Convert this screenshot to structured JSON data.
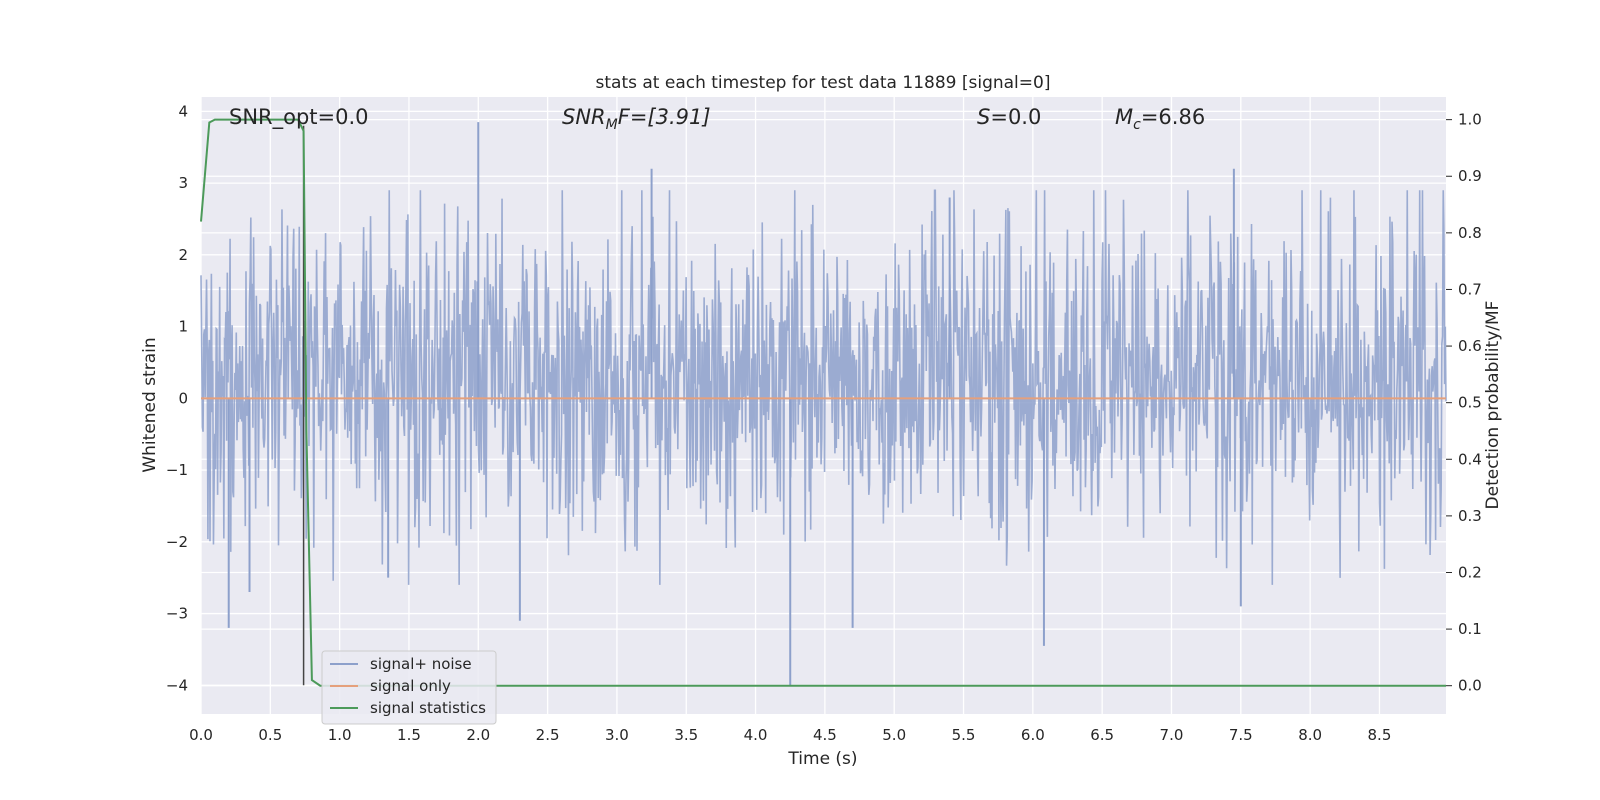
{
  "chart_data": {
    "type": "line",
    "title": "stats at each timestep for test data 11889 [signal=0]",
    "xlabel": "Time (s)",
    "ylabel": "Whitened strain",
    "y2label": "Detection probability/MF",
    "xlim": [
      0.0,
      8.98
    ],
    "ylim": [
      -4.4,
      4.2
    ],
    "y2lim": [
      -0.05,
      1.04
    ],
    "xticks": [
      "0.0",
      "0.5",
      "1.0",
      "1.5",
      "2.0",
      "2.5",
      "3.0",
      "3.5",
      "4.0",
      "4.5",
      "5.0",
      "5.5",
      "6.0",
      "6.5",
      "7.0",
      "7.5",
      "8.0",
      "8.5"
    ],
    "yticks": [
      "4",
      "3",
      "2",
      "1",
      "0",
      "−1",
      "−2",
      "−3",
      "−4"
    ],
    "y2ticks": [
      "1.0",
      "0.9",
      "0.8",
      "0.7",
      "0.6",
      "0.5",
      "0.4",
      "0.3",
      "0.2",
      "0.1",
      "0.0"
    ],
    "grid": true,
    "legend_position": "lower-left",
    "annotations": {
      "snr_opt": "SNR_opt=0.0",
      "snr_mf_base": "SNR",
      "snr_mf_sub": "M",
      "snr_mf_rest": "F=[3.91]",
      "s_base": "S",
      "s_rest": "=0.0",
      "mc_base": "M",
      "mc_sub": "c",
      "mc_rest": "=6.86"
    },
    "marker_line_x": 0.74,
    "series": [
      {
        "name": "signal+ noise",
        "color": "#8da0cb",
        "axis": "left",
        "typical_range": [
          -1.7,
          2.3
        ],
        "peaks": [
          {
            "x": 0.2,
            "y": -3.2
          },
          {
            "x": 0.35,
            "y": -2.7
          },
          {
            "x": 1.35,
            "y": -2.5
          },
          {
            "x": 2.0,
            "y": 3.85
          },
          {
            "x": 2.3,
            "y": -3.1
          },
          {
            "x": 3.25,
            "y": 3.2
          },
          {
            "x": 4.25,
            "y": -4.0
          },
          {
            "x": 4.7,
            "y": -3.2
          },
          {
            "x": 5.4,
            "y": 2.8
          },
          {
            "x": 6.08,
            "y": -3.45
          },
          {
            "x": 7.45,
            "y": 3.2
          },
          {
            "x": 7.5,
            "y": -2.9
          }
        ]
      },
      {
        "name": "signal only",
        "color": "#e5a07c",
        "axis": "left",
        "x": [
          0.0,
          8.98
        ],
        "y": [
          0.0,
          0.0
        ]
      },
      {
        "name": "signal statistics",
        "color": "#4c9a5a",
        "axis": "right",
        "x": [
          0.0,
          0.06,
          0.1,
          0.2,
          0.4,
          0.6,
          0.7,
          0.74,
          0.76,
          0.8,
          0.86,
          8.98
        ],
        "y": [
          0.82,
          0.995,
          1.0,
          1.0,
          1.0,
          1.0,
          1.0,
          0.98,
          0.45,
          0.01,
          0.0,
          0.0
        ]
      }
    ]
  }
}
